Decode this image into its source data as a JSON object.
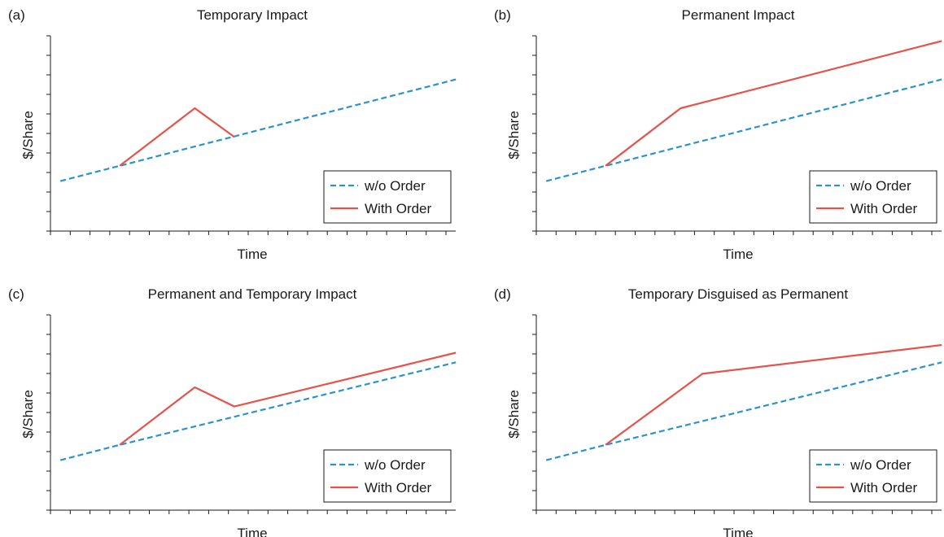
{
  "chart_data": [
    {
      "type": "line",
      "panel_label": "(a)",
      "title": "Temporary Impact",
      "xlabel": "Time",
      "ylabel": "$/Share",
      "xlim": [
        0,
        20
      ],
      "ylim": [
        0,
        10
      ],
      "legend_position": "bottom-right",
      "series": [
        {
          "name": "w/o Order",
          "color": "#2a93c9",
          "dash": "dashed",
          "points": [
            [
              0.5,
              2.6
            ],
            [
              3.5,
              3.4
            ],
            [
              20.5,
              7.9
            ]
          ]
        },
        {
          "name": "With Order",
          "color": "#e5534b",
          "dash": "solid",
          "points": [
            [
              3.5,
              3.4
            ],
            [
              7.3,
              6.4
            ],
            [
              9.3,
              4.9
            ]
          ]
        }
      ]
    },
    {
      "type": "line",
      "panel_label": "(b)",
      "title": "Permanent Impact",
      "xlabel": "Time",
      "ylabel": "$/Share",
      "xlim": [
        0,
        20
      ],
      "ylim": [
        0,
        10
      ],
      "legend_position": "bottom-right",
      "series": [
        {
          "name": "w/o Order",
          "color": "#2a93c9",
          "dash": "dashed",
          "points": [
            [
              0.5,
              2.6
            ],
            [
              3.5,
              3.4
            ],
            [
              20.5,
              7.9
            ]
          ]
        },
        {
          "name": "With Order",
          "color": "#e5534b",
          "dash": "solid",
          "points": [
            [
              3.5,
              3.4
            ],
            [
              7.3,
              6.4
            ],
            [
              20.5,
              9.9
            ]
          ]
        }
      ]
    },
    {
      "type": "line",
      "panel_label": "(c)",
      "title": "Permanent and Temporary Impact",
      "xlabel": "Time",
      "ylabel": "$/Share",
      "xlim": [
        0,
        20
      ],
      "ylim": [
        0,
        10
      ],
      "legend_position": "bottom-right",
      "series": [
        {
          "name": "w/o Order",
          "color": "#2a93c9",
          "dash": "dashed",
          "points": [
            [
              0.5,
              2.6
            ],
            [
              3.5,
              3.4
            ],
            [
              20.5,
              7.7
            ]
          ]
        },
        {
          "name": "With Order",
          "color": "#e5534b",
          "dash": "solid",
          "points": [
            [
              3.5,
              3.4
            ],
            [
              7.3,
              6.4
            ],
            [
              9.3,
              5.4
            ],
            [
              20.5,
              8.2
            ]
          ]
        }
      ]
    },
    {
      "type": "line",
      "panel_label": "(d)",
      "title": "Temporary Disguised as Permanent",
      "xlabel": "Time",
      "ylabel": "$/Share",
      "xlim": [
        0,
        20
      ],
      "ylim": [
        0,
        10
      ],
      "legend_position": "bottom-right",
      "series": [
        {
          "name": "w/o Order",
          "color": "#2a93c9",
          "dash": "dashed",
          "points": [
            [
              0.5,
              2.6
            ],
            [
              3.5,
              3.4
            ],
            [
              20.5,
              7.7
            ]
          ]
        },
        {
          "name": "With Order",
          "color": "#e5534b",
          "dash": "solid",
          "points": [
            [
              3.5,
              3.4
            ],
            [
              8.4,
              7.1
            ],
            [
              20.5,
              8.6
            ]
          ]
        }
      ]
    }
  ]
}
